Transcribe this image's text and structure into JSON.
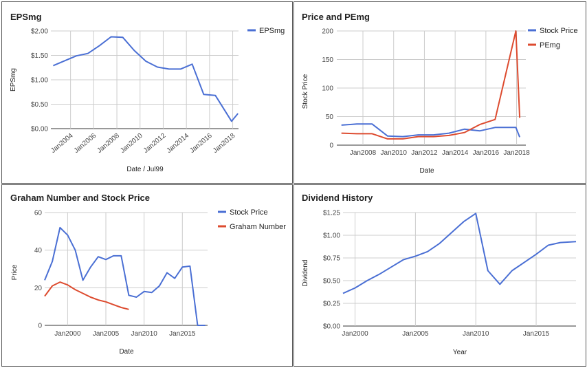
{
  "chart_data": [
    {
      "type": "line",
      "title": "EPSmg",
      "xlabel": "Date / Jul99",
      "ylabel": "EPSmg",
      "xlim": [
        2002.3,
        2018.5
      ],
      "ylim": [
        0,
        2
      ],
      "yticks": [
        0,
        0.5,
        1,
        1.5,
        2
      ],
      "ytick_labels": [
        "$0.00",
        "$0.50",
        "$1.00",
        "$1.50",
        "$2.00"
      ],
      "xticks": [
        2004,
        2006,
        2008,
        2010,
        2012,
        2014,
        2016,
        2018
      ],
      "xtick_labels": [
        "Jan2004",
        "Jan2006",
        "Jan2008",
        "Jan2010",
        "Jan2012",
        "Jan2014",
        "Jan2016",
        "Jan2018"
      ],
      "xtick_rotated": true,
      "legend": "right",
      "series": [
        {
          "name": "EPSmg",
          "color": "#4a6fd4",
          "x": [
            2002.5,
            2003.5,
            2004.5,
            2005.5,
            2006.5,
            2007.5,
            2008.5,
            2009.5,
            2010.5,
            2011.5,
            2012.5,
            2013.5,
            2014.5,
            2015.5,
            2016.5,
            2017.9,
            2018.45
          ],
          "y": [
            1.29,
            1.39,
            1.49,
            1.54,
            1.7,
            1.88,
            1.87,
            1.6,
            1.38,
            1.26,
            1.22,
            1.22,
            1.32,
            0.7,
            0.68,
            0.15,
            0.31
          ]
        }
      ]
    },
    {
      "type": "line",
      "title": "Price and PEmg",
      "xlabel": "Date",
      "ylabel": "Stock Price",
      "xlim": [
        2006.3,
        2018.6
      ],
      "ylim": [
        0,
        200
      ],
      "yticks": [
        0,
        50,
        100,
        150,
        200
      ],
      "ytick_labels": [
        "0",
        "50",
        "100",
        "150",
        "200"
      ],
      "xticks": [
        2008,
        2010,
        2012,
        2014,
        2016,
        2018
      ],
      "xtick_labels": [
        "Jan2008",
        "Jan2010",
        "Jan2012",
        "Jan2014",
        "Jan2016",
        "Jan2018"
      ],
      "legend": "right",
      "series": [
        {
          "name": "Stock Price",
          "color": "#4a6fd4",
          "x": [
            2006.6,
            2007.6,
            2008.6,
            2009.6,
            2010.6,
            2011.6,
            2012.6,
            2013.6,
            2014.6,
            2015.6,
            2016.6,
            2017.6,
            2017.95,
            2018.2
          ],
          "y": [
            35,
            37,
            37,
            16,
            15,
            18,
            18,
            21,
            28,
            25,
            31,
            31,
            31,
            14
          ]
        },
        {
          "name": "PEmg",
          "color": "#dd4b2f",
          "x": [
            2006.6,
            2007.6,
            2008.6,
            2009.6,
            2010.6,
            2011.6,
            2012.6,
            2013.6,
            2014.6,
            2015.6,
            2016.6,
            2017.95,
            2018.2
          ],
          "y": [
            21,
            20,
            20,
            11,
            11,
            15,
            15,
            17,
            22,
            36,
            45,
            200,
            48
          ]
        }
      ]
    },
    {
      "type": "line",
      "title": "Graham Number and Stock Price",
      "xlabel": "Date",
      "ylabel": "Price",
      "xlim": [
        1997.0,
        2018.3
      ],
      "ylim": [
        0,
        60
      ],
      "yticks": [
        0,
        20,
        40,
        60
      ],
      "ytick_labels": [
        "0",
        "20",
        "40",
        "60"
      ],
      "xticks": [
        2000,
        2005,
        2010,
        2015
      ],
      "xtick_labels": [
        "Jan2000",
        "Jan2005",
        "Jan2010",
        "Jan2015"
      ],
      "legend": "right",
      "series": [
        {
          "name": "Stock Price",
          "color": "#4a6fd4",
          "x": [
            1997.0,
            1998.0,
            1999.0,
            2000.0,
            2001.0,
            2002.0,
            2003.0,
            2004.0,
            2005.0,
            2006.0,
            2007.0,
            2008.0,
            2009.0,
            2010.0,
            2011.0,
            2012.0,
            2013.0,
            2014.0,
            2015.0,
            2016.0,
            2017.0,
            2018.0
          ],
          "y": [
            24,
            34,
            52,
            48,
            40,
            24,
            31,
            36.5,
            35,
            37,
            37,
            16,
            15,
            18,
            17.5,
            21,
            28,
            25,
            31,
            31.5,
            0,
            0
          ]
        },
        {
          "name": "Graham Number",
          "color": "#dd4b2f",
          "x": [
            1997.0,
            1998.0,
            1999.0,
            2000.0,
            2001.0,
            2002.0,
            2003.0,
            2004.0,
            2005.0,
            2006.0,
            2007.0,
            2008.0
          ],
          "y": [
            15.5,
            21,
            23,
            21.5,
            19,
            17,
            15,
            13.5,
            12.5,
            11,
            9.5,
            8.5
          ]
        }
      ]
    },
    {
      "type": "line",
      "title": "Dividend History",
      "xlabel": "Year",
      "ylabel": "Dividend",
      "xlim": [
        1999.0,
        2018.3
      ],
      "ylim": [
        0,
        1.25
      ],
      "yticks": [
        0,
        0.25,
        0.5,
        0.75,
        1.0,
        1.25
      ],
      "ytick_labels": [
        "$0.00",
        "$0.25",
        "$0.50",
        "$0.75",
        "$1.00",
        "$1.25"
      ],
      "xticks": [
        2000,
        2005,
        2010,
        2015
      ],
      "xtick_labels": [
        "Jan2000",
        "Jan2005",
        "Jan2010",
        "Jan2015"
      ],
      "legend": "none",
      "series": [
        {
          "name": "Dividend",
          "color": "#4a6fd4",
          "x": [
            1999.0,
            2000.0,
            2001.0,
            2002.0,
            2003.0,
            2004.0,
            2005.0,
            2006.0,
            2007.0,
            2008.0,
            2009.0,
            2010.0,
            2011.0,
            2012.0,
            2013.0,
            2014.0,
            2015.0,
            2016.0,
            2017.0,
            2018.3
          ],
          "y": [
            0.36,
            0.42,
            0.5,
            0.57,
            0.65,
            0.73,
            0.77,
            0.82,
            0.91,
            1.03,
            1.15,
            1.24,
            0.61,
            0.46,
            0.61,
            0.7,
            0.79,
            0.89,
            0.92,
            0.93
          ]
        }
      ]
    }
  ]
}
